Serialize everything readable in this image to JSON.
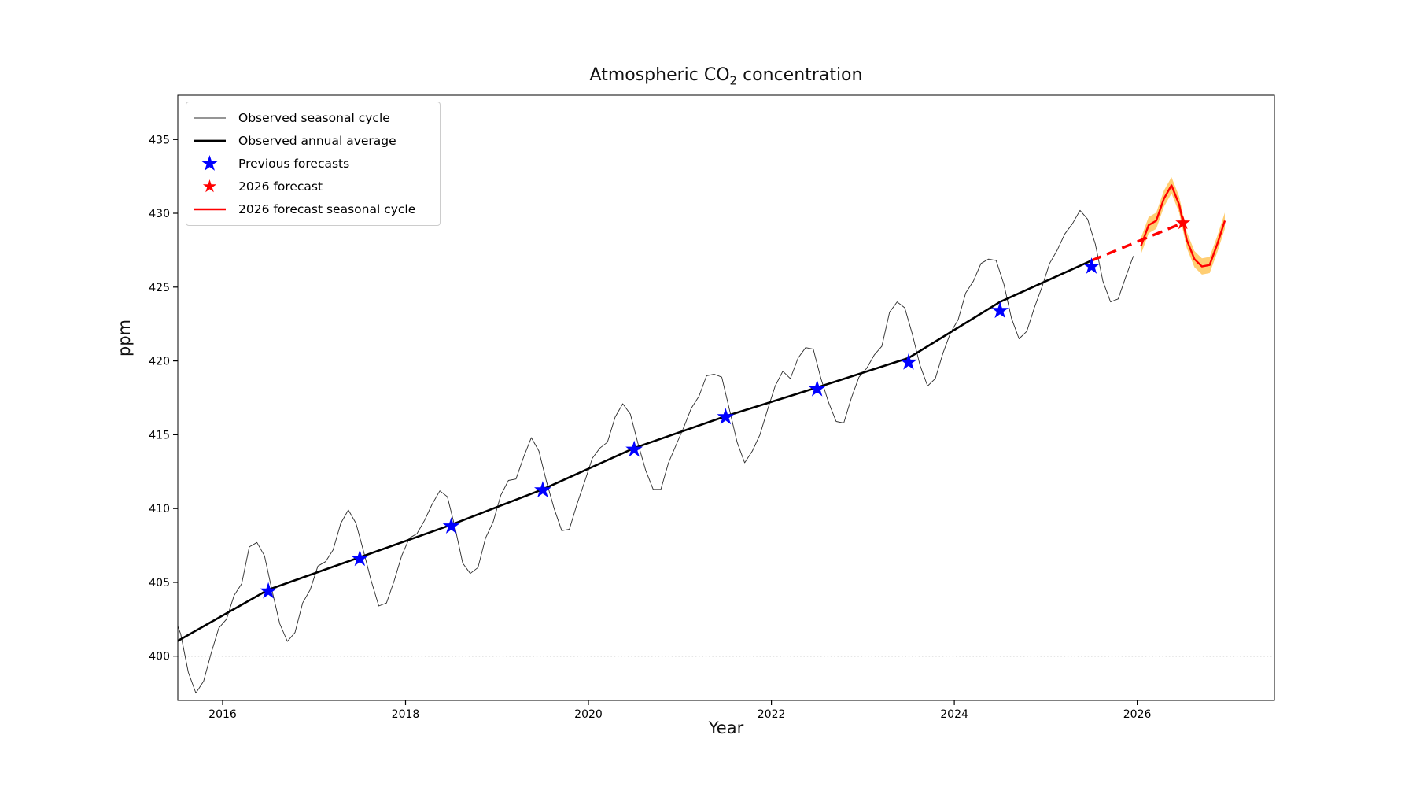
{
  "title": {
    "prefix": "Atmospheric CO",
    "subscript": "2",
    "suffix": " concentration"
  },
  "colors": {
    "observed_seasonal": "#2b2b2b",
    "observed_annual": "#000000",
    "previous_forecasts": "#0000ff",
    "forecast": "#ff0000",
    "forecast_band": "#ffa500",
    "axis": "#000000",
    "legend_border": "#cccccc"
  },
  "chart_data": {
    "type": "line",
    "title": "Atmospheric CO2 concentration",
    "xlabel": "Year",
    "ylabel": "ppm",
    "xlim": [
      2015.51,
      2027.5
    ],
    "ylim": [
      397.0,
      438.0
    ],
    "x_ticks": [
      "2016",
      "2018",
      "2020",
      "2022",
      "2024",
      "2026"
    ],
    "x_tick_values": [
      2016,
      2018,
      2020,
      2022,
      2024,
      2026
    ],
    "y_ticks": [
      "400",
      "405",
      "410",
      "415",
      "420",
      "425",
      "430",
      "435"
    ],
    "y_tick_values": [
      400,
      405,
      410,
      415,
      420,
      425,
      430,
      435
    ],
    "grid": false,
    "reference_line_y": 400,
    "legend": {
      "location": "upper left",
      "entries": [
        {
          "label": "Observed seasonal cycle"
        },
        {
          "label": "Observed annual average"
        },
        {
          "label": "Previous forecasts"
        },
        {
          "label": "2026 forecast"
        },
        {
          "label": "2026 forecast seasonal cycle"
        }
      ]
    },
    "series": [
      {
        "name": "Observed seasonal cycle",
        "type": "line",
        "color": "#2b2b2b",
        "width": 0.9,
        "points": [
          [
            2015.458,
            402.9
          ],
          [
            2015.542,
            401.5
          ],
          [
            2015.625,
            398.9
          ],
          [
            2015.708,
            397.5
          ],
          [
            2015.792,
            398.3
          ],
          [
            2015.875,
            400.2
          ],
          [
            2015.958,
            401.9
          ],
          [
            2016.042,
            402.5
          ],
          [
            2016.125,
            404.1
          ],
          [
            2016.208,
            404.9
          ],
          [
            2016.292,
            407.4
          ],
          [
            2016.375,
            407.7
          ],
          [
            2016.458,
            406.8
          ],
          [
            2016.542,
            404.4
          ],
          [
            2016.625,
            402.2
          ],
          [
            2016.708,
            401.0
          ],
          [
            2016.792,
            401.6
          ],
          [
            2016.875,
            403.6
          ],
          [
            2016.958,
            404.5
          ],
          [
            2017.042,
            406.1
          ],
          [
            2017.125,
            406.4
          ],
          [
            2017.208,
            407.2
          ],
          [
            2017.292,
            409.0
          ],
          [
            2017.375,
            409.9
          ],
          [
            2017.458,
            409.0
          ],
          [
            2017.542,
            407.1
          ],
          [
            2017.625,
            405.1
          ],
          [
            2017.708,
            403.4
          ],
          [
            2017.792,
            403.6
          ],
          [
            2017.875,
            405.1
          ],
          [
            2017.958,
            406.8
          ],
          [
            2018.042,
            408.0
          ],
          [
            2018.125,
            408.3
          ],
          [
            2018.208,
            409.2
          ],
          [
            2018.292,
            410.3
          ],
          [
            2018.375,
            411.2
          ],
          [
            2018.458,
            410.8
          ],
          [
            2018.542,
            408.7
          ],
          [
            2018.625,
            406.3
          ],
          [
            2018.708,
            405.6
          ],
          [
            2018.792,
            406.0
          ],
          [
            2018.875,
            408.0
          ],
          [
            2018.958,
            409.1
          ],
          [
            2019.042,
            410.9
          ],
          [
            2019.125,
            411.9
          ],
          [
            2019.208,
            412.0
          ],
          [
            2019.292,
            413.5
          ],
          [
            2019.375,
            414.8
          ],
          [
            2019.458,
            413.9
          ],
          [
            2019.542,
            411.8
          ],
          [
            2019.625,
            410.0
          ],
          [
            2019.708,
            408.5
          ],
          [
            2019.792,
            408.6
          ],
          [
            2019.875,
            410.3
          ],
          [
            2019.958,
            411.8
          ],
          [
            2020.042,
            413.4
          ],
          [
            2020.125,
            414.1
          ],
          [
            2020.208,
            414.5
          ],
          [
            2020.292,
            416.2
          ],
          [
            2020.375,
            417.1
          ],
          [
            2020.458,
            416.4
          ],
          [
            2020.542,
            414.4
          ],
          [
            2020.625,
            412.6
          ],
          [
            2020.708,
            411.3
          ],
          [
            2020.792,
            411.3
          ],
          [
            2020.875,
            413.1
          ],
          [
            2020.958,
            414.3
          ],
          [
            2021.042,
            415.5
          ],
          [
            2021.125,
            416.8
          ],
          [
            2021.208,
            417.6
          ],
          [
            2021.292,
            419.0
          ],
          [
            2021.375,
            419.1
          ],
          [
            2021.458,
            418.9
          ],
          [
            2021.542,
            416.7
          ],
          [
            2021.625,
            414.5
          ],
          [
            2021.708,
            413.1
          ],
          [
            2021.792,
            413.9
          ],
          [
            2021.875,
            415.0
          ],
          [
            2021.958,
            416.7
          ],
          [
            2022.042,
            418.3
          ],
          [
            2022.125,
            419.3
          ],
          [
            2022.208,
            418.8
          ],
          [
            2022.292,
            420.2
          ],
          [
            2022.375,
            420.9
          ],
          [
            2022.458,
            420.8
          ],
          [
            2022.542,
            418.8
          ],
          [
            2022.625,
            417.2
          ],
          [
            2022.708,
            415.9
          ],
          [
            2022.792,
            415.8
          ],
          [
            2022.875,
            417.5
          ],
          [
            2022.958,
            418.9
          ],
          [
            2023.042,
            419.5
          ],
          [
            2023.125,
            420.4
          ],
          [
            2023.208,
            421.0
          ],
          [
            2023.292,
            423.3
          ],
          [
            2023.375,
            424.0
          ],
          [
            2023.458,
            423.6
          ],
          [
            2023.542,
            421.8
          ],
          [
            2023.625,
            419.7
          ],
          [
            2023.708,
            418.3
          ],
          [
            2023.792,
            418.8
          ],
          [
            2023.875,
            420.5
          ],
          [
            2023.958,
            421.9
          ],
          [
            2024.042,
            422.8
          ],
          [
            2024.125,
            424.6
          ],
          [
            2024.208,
            425.4
          ],
          [
            2024.292,
            426.6
          ],
          [
            2024.375,
            426.9
          ],
          [
            2024.458,
            426.8
          ],
          [
            2024.542,
            425.2
          ],
          [
            2024.625,
            422.9
          ],
          [
            2024.708,
            421.5
          ],
          [
            2024.792,
            422.0
          ],
          [
            2024.875,
            423.6
          ],
          [
            2024.958,
            425.0
          ],
          [
            2025.042,
            426.6
          ],
          [
            2025.125,
            427.5
          ],
          [
            2025.208,
            428.6
          ],
          [
            2025.292,
            429.3
          ],
          [
            2025.375,
            430.2
          ],
          [
            2025.458,
            429.6
          ],
          [
            2025.542,
            427.9
          ],
          [
            2025.625,
            425.4
          ],
          [
            2025.708,
            424.0
          ],
          [
            2025.792,
            424.2
          ],
          [
            2025.875,
            425.7
          ],
          [
            2025.958,
            427.1
          ]
        ]
      },
      {
        "name": "Observed annual average",
        "type": "line",
        "color": "#000000",
        "width": 2.6,
        "points": [
          [
            2015.5,
            401.0
          ],
          [
            2016.5,
            404.5
          ],
          [
            2017.5,
            406.7
          ],
          [
            2018.5,
            408.9
          ],
          [
            2019.5,
            411.3
          ],
          [
            2020.5,
            414.1
          ],
          [
            2021.5,
            416.25
          ],
          [
            2022.5,
            418.2
          ],
          [
            2023.5,
            420.2
          ],
          [
            2024.5,
            424.0
          ],
          [
            2025.5,
            426.8
          ]
        ]
      },
      {
        "name": "2026 forecast seasonal cycle",
        "type": "band-line",
        "color": "#ff0000",
        "band_color": "#ffa500",
        "band_opacity": 0.55,
        "band_halfwidth": 0.55,
        "width": 2.4,
        "points": [
          [
            2026.042,
            427.8
          ],
          [
            2026.125,
            429.2
          ],
          [
            2026.208,
            429.5
          ],
          [
            2026.292,
            431.0
          ],
          [
            2026.375,
            431.9
          ],
          [
            2026.458,
            430.6
          ],
          [
            2026.542,
            428.2
          ],
          [
            2026.625,
            426.9
          ],
          [
            2026.708,
            426.4
          ],
          [
            2026.792,
            426.5
          ],
          [
            2026.875,
            427.9
          ],
          [
            2026.958,
            429.5
          ]
        ]
      },
      {
        "name": "2026 forecast connector",
        "type": "dashed-line",
        "color": "#ff0000",
        "width": 3.4,
        "dash": "13 8",
        "points": [
          [
            2025.5,
            426.8
          ],
          [
            2026.5,
            429.35
          ]
        ]
      },
      {
        "name": "Previous forecasts",
        "type": "star",
        "color": "#0000ff",
        "size": 11.5,
        "points": [
          [
            2016.5,
            404.4
          ],
          [
            2017.5,
            406.6
          ],
          [
            2018.5,
            408.8
          ],
          [
            2019.5,
            411.25
          ],
          [
            2020.5,
            414.0
          ],
          [
            2021.5,
            416.2
          ],
          [
            2022.5,
            418.1
          ],
          [
            2023.5,
            419.9
          ],
          [
            2024.5,
            423.4
          ],
          [
            2025.5,
            426.4
          ]
        ]
      },
      {
        "name": "2026 forecast",
        "type": "star",
        "color": "#ff0000",
        "size": 10,
        "points": [
          [
            2026.5,
            429.35
          ]
        ]
      }
    ]
  }
}
